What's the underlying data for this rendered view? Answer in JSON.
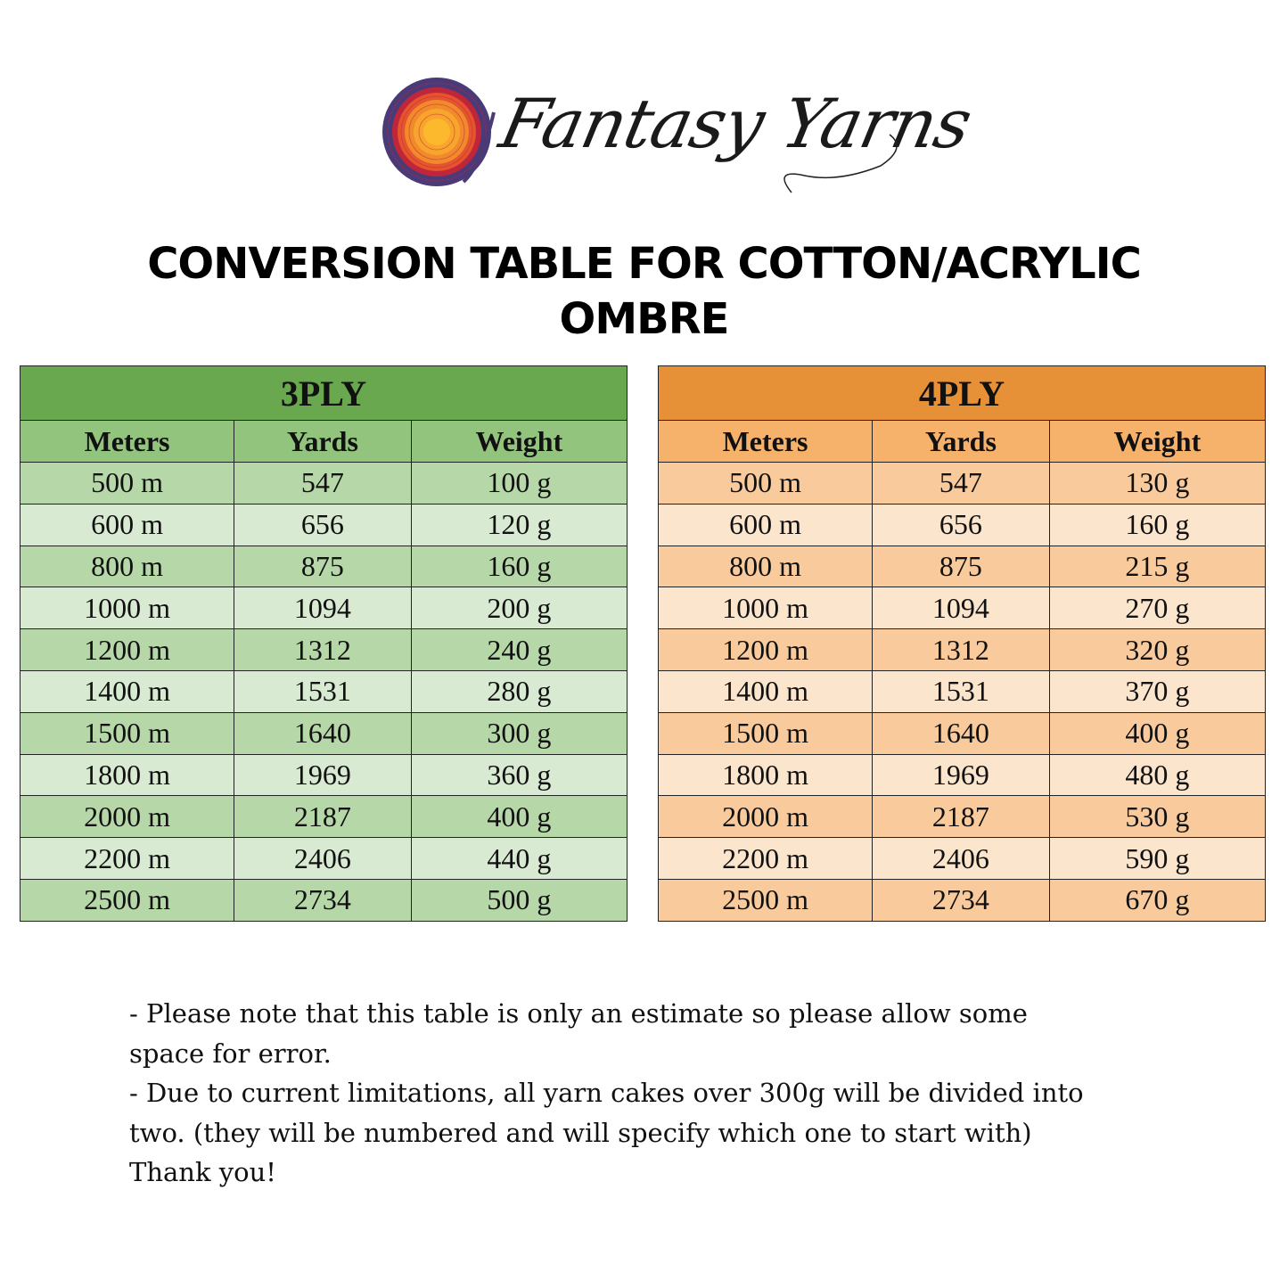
{
  "logo": {
    "text": "Fantasy Yarns",
    "colors": {
      "outer": "#4a3a78",
      "ring": "#c0263a",
      "inner": "#f08a2c",
      "center": "#fdb92e"
    }
  },
  "title": {
    "line1": "CONVERSION TABLE FOR COTTON/ACRYLIC",
    "line2": "OMBRE"
  },
  "tables": [
    {
      "title": "3PLY",
      "colors": {
        "header": "#6aa84f",
        "columns": "#93c47d",
        "dark": "#b6d7a8",
        "light": "#d9ead3"
      },
      "columns": [
        "Meters",
        "Yards",
        "Weight"
      ],
      "rows": [
        [
          "500 m",
          "547",
          "100 g"
        ],
        [
          "600 m",
          "656",
          "120 g"
        ],
        [
          "800 m",
          "875",
          "160 g"
        ],
        [
          "1000 m",
          "1094",
          "200 g"
        ],
        [
          "1200 m",
          "1312",
          "240 g"
        ],
        [
          "1400 m",
          "1531",
          "280 g"
        ],
        [
          "1500 m",
          "1640",
          "300 g"
        ],
        [
          "1800 m",
          "1969",
          "360 g"
        ],
        [
          "2000 m",
          "2187",
          "400 g"
        ],
        [
          "2200 m",
          "2406",
          "440 g"
        ],
        [
          "2500 m",
          "2734",
          "500 g"
        ]
      ]
    },
    {
      "title": "4PLY",
      "colors": {
        "header": "#e69138",
        "columns": "#f6b26b",
        "dark": "#f9cb9c",
        "light": "#fce5cd"
      },
      "columns": [
        "Meters",
        "Yards",
        "Weight"
      ],
      "rows": [
        [
          "500 m",
          "547",
          "130 g"
        ],
        [
          "600 m",
          "656",
          "160 g"
        ],
        [
          "800 m",
          "875",
          "215 g"
        ],
        [
          "1000 m",
          "1094",
          "270 g"
        ],
        [
          "1200 m",
          "1312",
          "320 g"
        ],
        [
          "1400 m",
          "1531",
          "370 g"
        ],
        [
          "1500 m",
          "1640",
          "400 g"
        ],
        [
          "1800 m",
          "1969",
          "480 g"
        ],
        [
          "2000 m",
          "2187",
          "530 g"
        ],
        [
          "2200 m",
          "2406",
          "590 g"
        ],
        [
          "2500 m",
          "2734",
          "670 g"
        ]
      ]
    }
  ],
  "notes": [
    "- Please note that this table is only an estimate so please allow some",
    "space for error.",
    "- Due to current limitations, all yarn cakes over 300g will be divided into",
    "two. (they will be numbered and will specify which one to start with)",
    "Thank you!"
  ]
}
